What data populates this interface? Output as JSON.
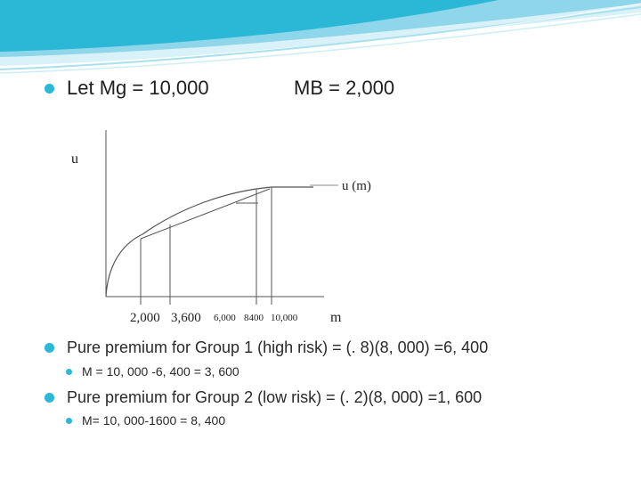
{
  "colors": {
    "accent": "#2bb7d6",
    "banner_light": "#d9f1f8",
    "banner_mid": "#8fd6ea",
    "banner_dark": "#2bb7d6",
    "text": "#222222",
    "line": "#555555"
  },
  "title": {
    "mg_text": "Let Mg = 10,000",
    "mb_text": "MB = 2,000"
  },
  "diagram": {
    "y_label": "u",
    "x_label": "m",
    "curve_label": "u (m)",
    "tick_labels": [
      "2,000",
      "3,600",
      "6,000",
      "8400",
      "10,000"
    ]
  },
  "bullets": [
    {
      "level": 1,
      "text": "Pure premium for Group 1 (high risk) = (. 8)(8, 000) =6, 400"
    },
    {
      "level": 2,
      "text": "M = 10, 000 -6, 400 = 3, 600"
    },
    {
      "level": 1,
      "text": "Pure premium for Group 2 (low risk) = (. 2)(8, 000) =1, 600"
    },
    {
      "level": 2,
      "text": "M= 10, 000-1600 = 8, 400"
    }
  ]
}
